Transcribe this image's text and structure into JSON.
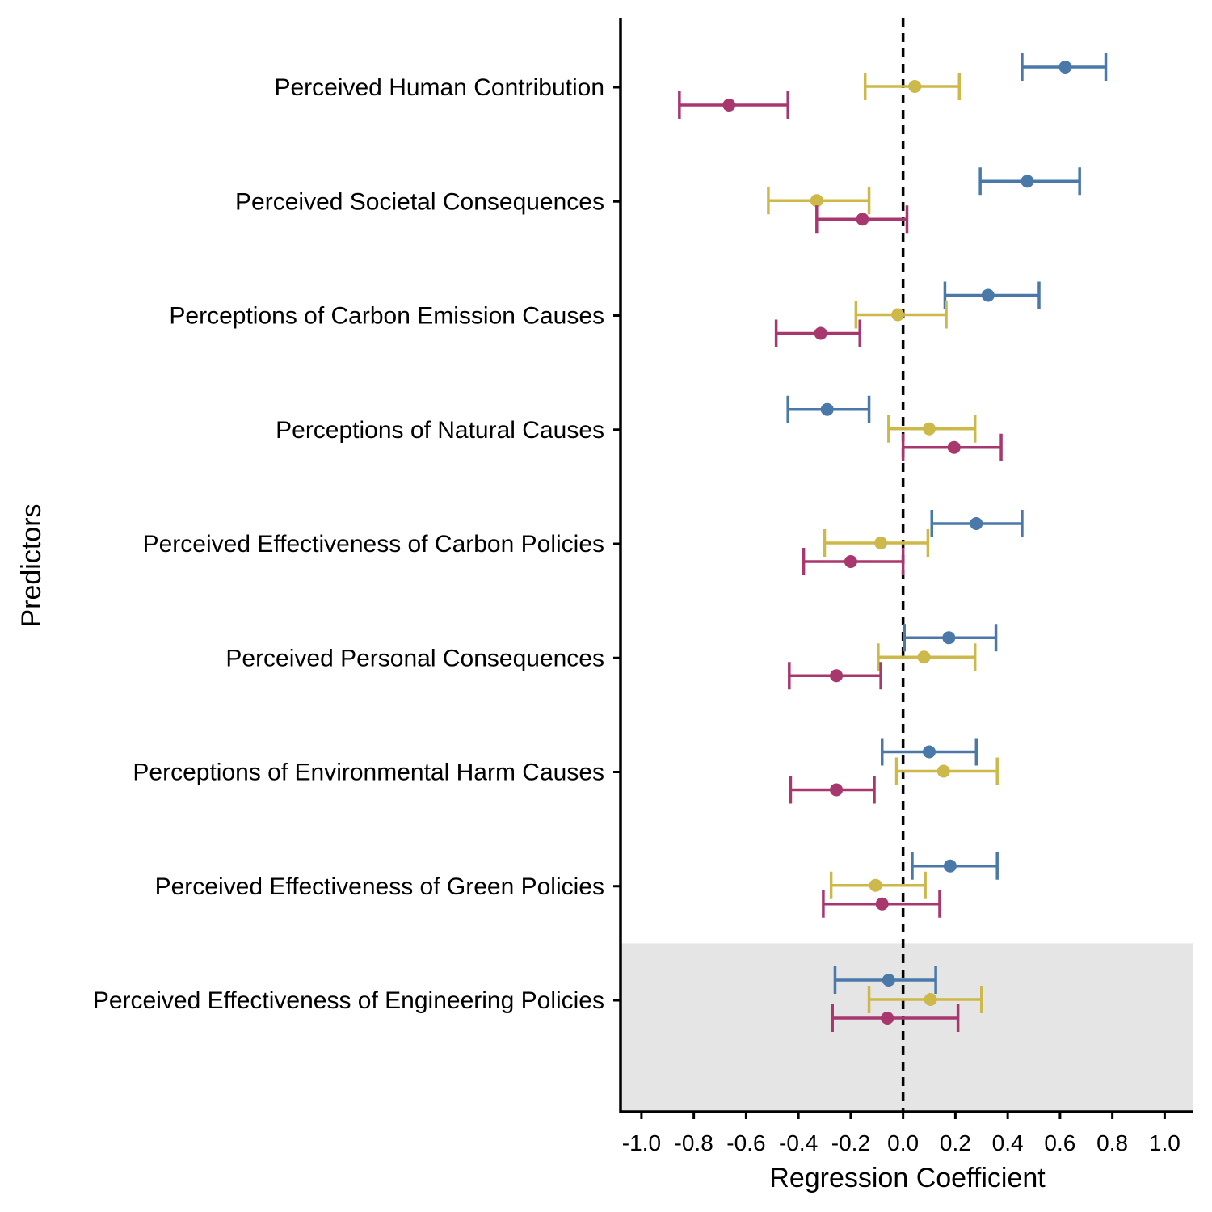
{
  "chart_data": {
    "type": "forest",
    "title": "",
    "xlabel": "Regression Coefficient",
    "ylabel": "Predictors",
    "xlim": [
      -1.08,
      1.11
    ],
    "x_ticks": [
      -1.0,
      -0.8,
      -0.6,
      -0.4,
      -0.2,
      0.0,
      0.2,
      0.4,
      0.6,
      0.8,
      1.0
    ],
    "x_tick_labels": [
      "-1.0",
      "-0.8",
      "-0.6",
      "-0.4",
      "-0.2",
      "0.0",
      "0.2",
      "0.4",
      "0.6",
      "0.8",
      "1.0"
    ],
    "reference_line": 0.0,
    "grid": false,
    "legend": "none",
    "highlighted_category": "Perceived Effectiveness of Engineering Policies",
    "highlight_color": "#e5e5e5",
    "categories": [
      "Perceived Human Contribution",
      "Perceived Societal Consequences",
      "Perceptions of Carbon Emission Causes",
      "Perceptions of Natural Causes",
      "Perceived Effectiveness of Carbon Policies",
      "Perceived Personal Consequences",
      "Perceptions of Environmental Harm Causes",
      "Perceived Effectiveness of Green Policies",
      "Perceived Effectiveness of Engineering Policies"
    ],
    "series": [
      {
        "color": "#4a78a8",
        "estimates": [
          0.62,
          0.475,
          0.325,
          -0.29,
          0.28,
          0.175,
          0.1,
          0.18,
          -0.055
        ],
        "ci_low": [
          0.455,
          0.295,
          0.16,
          -0.44,
          0.11,
          0.005,
          -0.08,
          0.035,
          -0.26
        ],
        "ci_high": [
          0.775,
          0.675,
          0.52,
          -0.13,
          0.455,
          0.355,
          0.28,
          0.36,
          0.125
        ]
      },
      {
        "color": "#cdb84a",
        "estimates": [
          0.045,
          -0.33,
          -0.02,
          0.1,
          -0.085,
          0.08,
          0.155,
          -0.105,
          0.105
        ],
        "ci_low": [
          -0.145,
          -0.515,
          -0.18,
          -0.055,
          -0.3,
          -0.095,
          -0.025,
          -0.275,
          -0.13
        ],
        "ci_high": [
          0.215,
          -0.13,
          0.165,
          0.275,
          0.095,
          0.275,
          0.36,
          0.085,
          0.3
        ]
      },
      {
        "color": "#a8376e",
        "estimates": [
          -0.665,
          -0.155,
          -0.315,
          0.195,
          -0.2,
          -0.255,
          -0.255,
          -0.08,
          -0.06
        ],
        "ci_low": [
          -0.855,
          -0.33,
          -0.485,
          0.0,
          -0.38,
          -0.435,
          -0.43,
          -0.305,
          -0.27
        ],
        "ci_high": [
          -0.44,
          0.015,
          -0.165,
          0.375,
          0.0,
          -0.085,
          -0.11,
          0.14,
          0.21
        ]
      }
    ]
  }
}
